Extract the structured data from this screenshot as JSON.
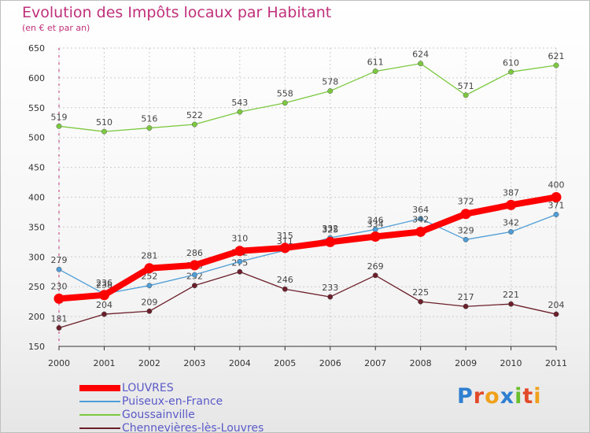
{
  "title": "Evolution des Impôts locaux par Habitant",
  "subtitle": "(en € et par an)",
  "logo": {
    "text": "Proxiti",
    "letter_colors": [
      "#2f7fd1",
      "#e24b2a",
      "#f0a11c",
      "#2f7fd1",
      "#6abf2a",
      "#e24b2a",
      "#f0a11c"
    ]
  },
  "chart_data": {
    "type": "line",
    "x": [
      "2000",
      "2001",
      "2002",
      "2003",
      "2004",
      "2005",
      "2006",
      "2007",
      "2008",
      "2009",
      "2010",
      "2011"
    ],
    "ylim": [
      150,
      650
    ],
    "yticks": [
      150,
      200,
      250,
      300,
      350,
      400,
      450,
      500,
      550,
      600,
      650
    ],
    "grid": true,
    "legend_position": "bottom-left",
    "series": [
      {
        "name": "LOUVRES",
        "color": "#ff0000",
        "values": [
          230,
          236,
          281,
          286,
          310,
          315,
          325,
          334,
          342,
          372,
          387,
          400
        ]
      },
      {
        "name": "Puiseux-en-France",
        "color": "#4f9dd6",
        "values": [
          279,
          238,
          252,
          270,
          292,
          311,
          332,
          346,
          364,
          329,
          342,
          371
        ]
      },
      {
        "name": "Goussainville",
        "color": "#7cc940",
        "values": [
          519,
          510,
          516,
          522,
          543,
          558,
          578,
          611,
          624,
          571,
          610,
          621
        ]
      },
      {
        "name": "Chennevières-lès-Louvres",
        "color": "#6b1f2a",
        "values": [
          181,
          204,
          209,
          252,
          275,
          246,
          233,
          269,
          225,
          217,
          221,
          204
        ]
      }
    ]
  }
}
